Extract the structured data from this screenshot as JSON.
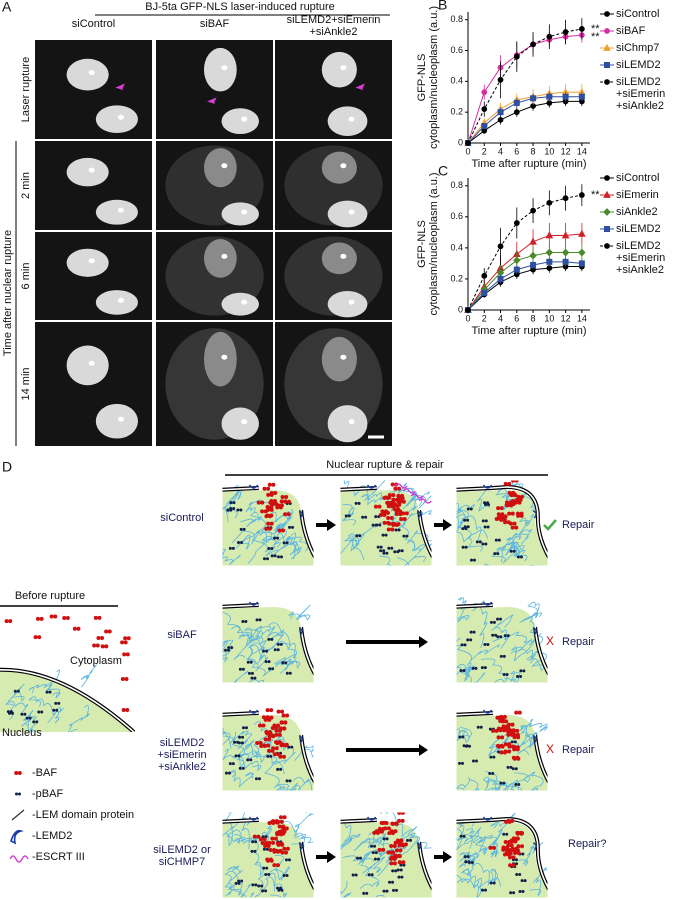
{
  "panel_a": {
    "label": "A",
    "title": "BJ-5ta GFP-NLS laser-induced rupture",
    "columns": [
      "siControl",
      "siBAF",
      "siLEMD2+siEmerin +siAnkle2"
    ],
    "rows": [
      "Laser rupture",
      "2 min",
      "6 min",
      "14 min"
    ],
    "side_label": "Time after nuclear rupture"
  },
  "chart_data": [
    {
      "type": "line",
      "label": "B",
      "ylabel": [
        "GFP-NLS",
        "cytoplasm/nucleoplasm (a.u.)"
      ],
      "xlabel": "Time after rupture (min)",
      "x": [
        0,
        2,
        4,
        6,
        8,
        10,
        12,
        14
      ],
      "xlim": [
        0,
        15
      ],
      "xticks": [
        0,
        2,
        4,
        6,
        8,
        10,
        12,
        14
      ],
      "ylim": [
        0,
        0.85
      ],
      "yticks": [
        0,
        0.2,
        0.4,
        0.6,
        0.8
      ],
      "annotations": [
        "**",
        "**"
      ],
      "series": [
        {
          "name": "siControl",
          "color": "#000000",
          "marker": "circle",
          "line_style": "solid",
          "values": [
            0,
            0.08,
            0.15,
            0.2,
            0.24,
            0.26,
            0.27,
            0.27
          ],
          "errors": [
            0,
            0.02,
            0.03,
            0.03,
            0.03,
            0.03,
            0.03,
            0.03
          ]
        },
        {
          "name": "siBAF",
          "color": "#d62fa0",
          "marker": "circle",
          "line_style": "solid",
          "values": [
            0,
            0.33,
            0.49,
            0.57,
            0.64,
            0.67,
            0.69,
            0.7
          ],
          "errors": [
            0,
            0.05,
            0.08,
            0.08,
            0.06,
            0.05,
            0.05,
            0.05
          ]
        },
        {
          "name": "siChmp7",
          "color": "#f0a030",
          "marker": "triangle",
          "line_style": "solid",
          "values": [
            0,
            0.13,
            0.22,
            0.28,
            0.3,
            0.32,
            0.33,
            0.33
          ],
          "errors": [
            0,
            0.03,
            0.04,
            0.04,
            0.05,
            0.05,
            0.05,
            0.05
          ]
        },
        {
          "name": "siLEMD2",
          "color": "#2f4fa0",
          "marker": "square",
          "line_style": "solid",
          "values": [
            0,
            0.11,
            0.2,
            0.26,
            0.29,
            0.3,
            0.3,
            0.3
          ],
          "errors": [
            0,
            0.02,
            0.03,
            0.03,
            0.03,
            0.03,
            0.03,
            0.03
          ]
        },
        {
          "name": "siLEMD2 +siEmerin +siAnkle2",
          "color": "#000000",
          "marker": "circle",
          "line_style": "dashed",
          "values": [
            0,
            0.22,
            0.41,
            0.56,
            0.64,
            0.69,
            0.72,
            0.74
          ],
          "errors": [
            0,
            0.05,
            0.12,
            0.1,
            0.08,
            0.08,
            0.08,
            0.07
          ]
        }
      ]
    },
    {
      "type": "line",
      "label": "C",
      "ylabel": [
        "GFP-NLS",
        "cytoplasm/nucleoplasm (a.u.)"
      ],
      "xlabel": "Time after rupture (min)",
      "x": [
        0,
        2,
        4,
        6,
        8,
        10,
        12,
        14
      ],
      "xlim": [
        0,
        15
      ],
      "xticks": [
        0,
        2,
        4,
        6,
        8,
        10,
        12,
        14
      ],
      "ylim": [
        0,
        0.85
      ],
      "yticks": [
        0,
        0.2,
        0.4,
        0.6,
        0.8
      ],
      "annotations": [
        "**"
      ],
      "series": [
        {
          "name": "siControl",
          "color": "#000000",
          "marker": "circle",
          "line_style": "solid",
          "values": [
            0,
            0.1,
            0.18,
            0.23,
            0.26,
            0.27,
            0.28,
            0.28
          ],
          "errors": [
            0,
            0.02,
            0.03,
            0.03,
            0.03,
            0.03,
            0.03,
            0.03
          ]
        },
        {
          "name": "siEmerin",
          "color": "#d0202a",
          "marker": "triangle",
          "line_style": "solid",
          "values": [
            0,
            0.15,
            0.27,
            0.36,
            0.44,
            0.48,
            0.48,
            0.49
          ],
          "errors": [
            0,
            0.05,
            0.08,
            0.08,
            0.08,
            0.08,
            0.08,
            0.07
          ]
        },
        {
          "name": "siAnkle2",
          "color": "#4a8a2a",
          "marker": "diamond",
          "line_style": "solid",
          "values": [
            0,
            0.13,
            0.24,
            0.32,
            0.35,
            0.37,
            0.37,
            0.37
          ],
          "errors": [
            0,
            0.04,
            0.06,
            0.06,
            0.06,
            0.06,
            0.05,
            0.05
          ]
        },
        {
          "name": "siLEMD2",
          "color": "#2f4fa0",
          "marker": "square",
          "line_style": "solid",
          "values": [
            0,
            0.11,
            0.2,
            0.26,
            0.29,
            0.31,
            0.31,
            0.3
          ],
          "errors": [
            0,
            0.02,
            0.03,
            0.03,
            0.03,
            0.03,
            0.03,
            0.03
          ]
        },
        {
          "name": "siLEMD2 +siEmerin +siAnkle2",
          "color": "#000000",
          "marker": "circle",
          "line_style": "dashed",
          "values": [
            0,
            0.22,
            0.41,
            0.56,
            0.64,
            0.69,
            0.72,
            0.74
          ],
          "errors": [
            0,
            0.05,
            0.12,
            0.1,
            0.08,
            0.08,
            0.08,
            0.07
          ]
        }
      ]
    }
  ],
  "panel_d": {
    "label": "D",
    "title": "Nuclear rupture & repair",
    "before": {
      "title": "Before rupture",
      "cytoplasm": "Cytoplasm",
      "nucleus": "Nucleus"
    },
    "legend": [
      "-BAF",
      "-pBAF",
      "-LEM domain protein",
      "-LEMD2",
      "-ESCRT III"
    ],
    "rows": [
      {
        "label": "siControl",
        "outcome": "Repair"
      },
      {
        "label": "siBAF",
        "mark": "X",
        "outcome": "Repair"
      },
      {
        "label": "siLEMD2 +siEmerin +siAnkle2",
        "mark": "X",
        "outcome": "Repair"
      },
      {
        "label": "siLEMD2 or siCHMP7",
        "outcome": "Repair?"
      }
    ]
  }
}
